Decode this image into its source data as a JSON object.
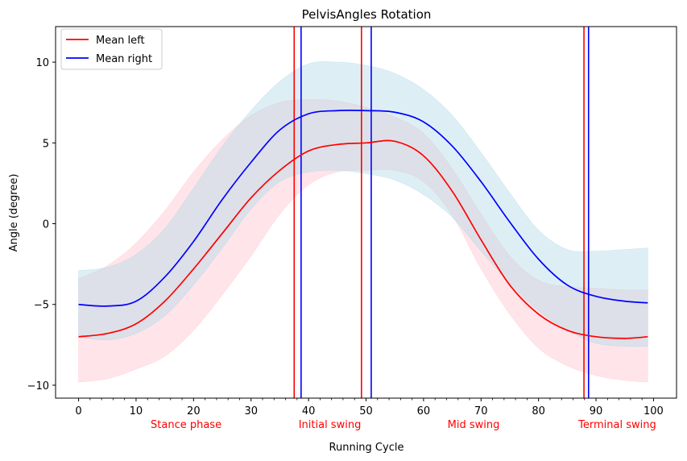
{
  "chart_data": {
    "type": "line",
    "title": "PelvisAngles Rotation",
    "xlabel": "Running Cycle",
    "ylabel": "Angle (degree)",
    "xlim": [
      -4,
      104
    ],
    "ylim": [
      -10.8,
      12.2
    ],
    "xticks": [
      0,
      10,
      20,
      30,
      40,
      50,
      60,
      70,
      80,
      90,
      100
    ],
    "yticks": [
      -10,
      -5,
      0,
      5,
      10
    ],
    "minor_xtick_step": 2,
    "grid": false,
    "legend_position": "top-left",
    "x": [
      0,
      5,
      10,
      15,
      20,
      25,
      30,
      35,
      40,
      45,
      50,
      55,
      60,
      65,
      70,
      75,
      80,
      85,
      90,
      95,
      99
    ],
    "series": [
      {
        "name": "Mean left",
        "color": "#ff0000",
        "band_color": "#ffc0cb",
        "mean": [
          -7.0,
          -6.8,
          -6.2,
          -4.8,
          -2.8,
          -0.6,
          1.6,
          3.3,
          4.5,
          4.9,
          5.0,
          5.1,
          4.2,
          2.0,
          -1.0,
          -3.8,
          -5.6,
          -6.6,
          -7.0,
          -7.1,
          -7.0
        ],
        "upper": [
          -3.4,
          -2.6,
          -1.2,
          0.8,
          3.2,
          5.2,
          6.7,
          7.5,
          7.7,
          7.6,
          7.2,
          6.6,
          5.6,
          3.4,
          0.6,
          -2.0,
          -3.5,
          -3.9,
          -4.0,
          -4.1,
          -4.1
        ],
        "lower": [
          -9.8,
          -9.6,
          -9.0,
          -8.2,
          -6.6,
          -4.4,
          -2.0,
          0.6,
          2.4,
          3.2,
          3.3,
          3.3,
          2.6,
          0.5,
          -2.8,
          -5.6,
          -7.7,
          -8.8,
          -9.4,
          -9.7,
          -9.8
        ]
      },
      {
        "name": "Mean right",
        "color": "#0000ff",
        "band_color": "#add8e6",
        "mean": [
          -5.0,
          -5.1,
          -4.8,
          -3.3,
          -1.1,
          1.5,
          3.8,
          5.8,
          6.8,
          7.0,
          7.0,
          6.9,
          6.3,
          4.8,
          2.6,
          0.1,
          -2.2,
          -3.8,
          -4.5,
          -4.8,
          -4.9
        ],
        "upper": [
          -2.9,
          -2.7,
          -1.9,
          -0.3,
          2.2,
          4.8,
          7.0,
          8.8,
          9.9,
          10.0,
          9.8,
          9.3,
          8.3,
          6.7,
          4.4,
          1.9,
          -0.4,
          -1.6,
          -1.7,
          -1.6,
          -1.5
        ],
        "lower": [
          -7.0,
          -7.2,
          -6.8,
          -5.7,
          -3.8,
          -1.5,
          0.9,
          2.6,
          3.2,
          3.3,
          3.1,
          2.7,
          1.8,
          0.4,
          -1.7,
          -3.7,
          -5.4,
          -6.6,
          -7.4,
          -7.6,
          -7.6
        ]
      }
    ],
    "vertical_lines": [
      {
        "x": 37.5,
        "color": "#ff0000"
      },
      {
        "x": 38.7,
        "color": "#0000ff"
      },
      {
        "x": 49.2,
        "color": "#ff0000"
      },
      {
        "x": 50.9,
        "color": "#0000ff"
      },
      {
        "x": 87.9,
        "color": "#ff0000"
      },
      {
        "x": 88.7,
        "color": "#0000ff"
      }
    ],
    "phase_labels": [
      {
        "text": "Stance phase",
        "x": 18.7
      },
      {
        "text": "Initial swing",
        "x": 43.7
      },
      {
        "text": "Mid swing",
        "x": 68.7
      },
      {
        "text": "Terminal swing",
        "x": 93.7
      }
    ],
    "phase_label_color": "#ff0000"
  }
}
